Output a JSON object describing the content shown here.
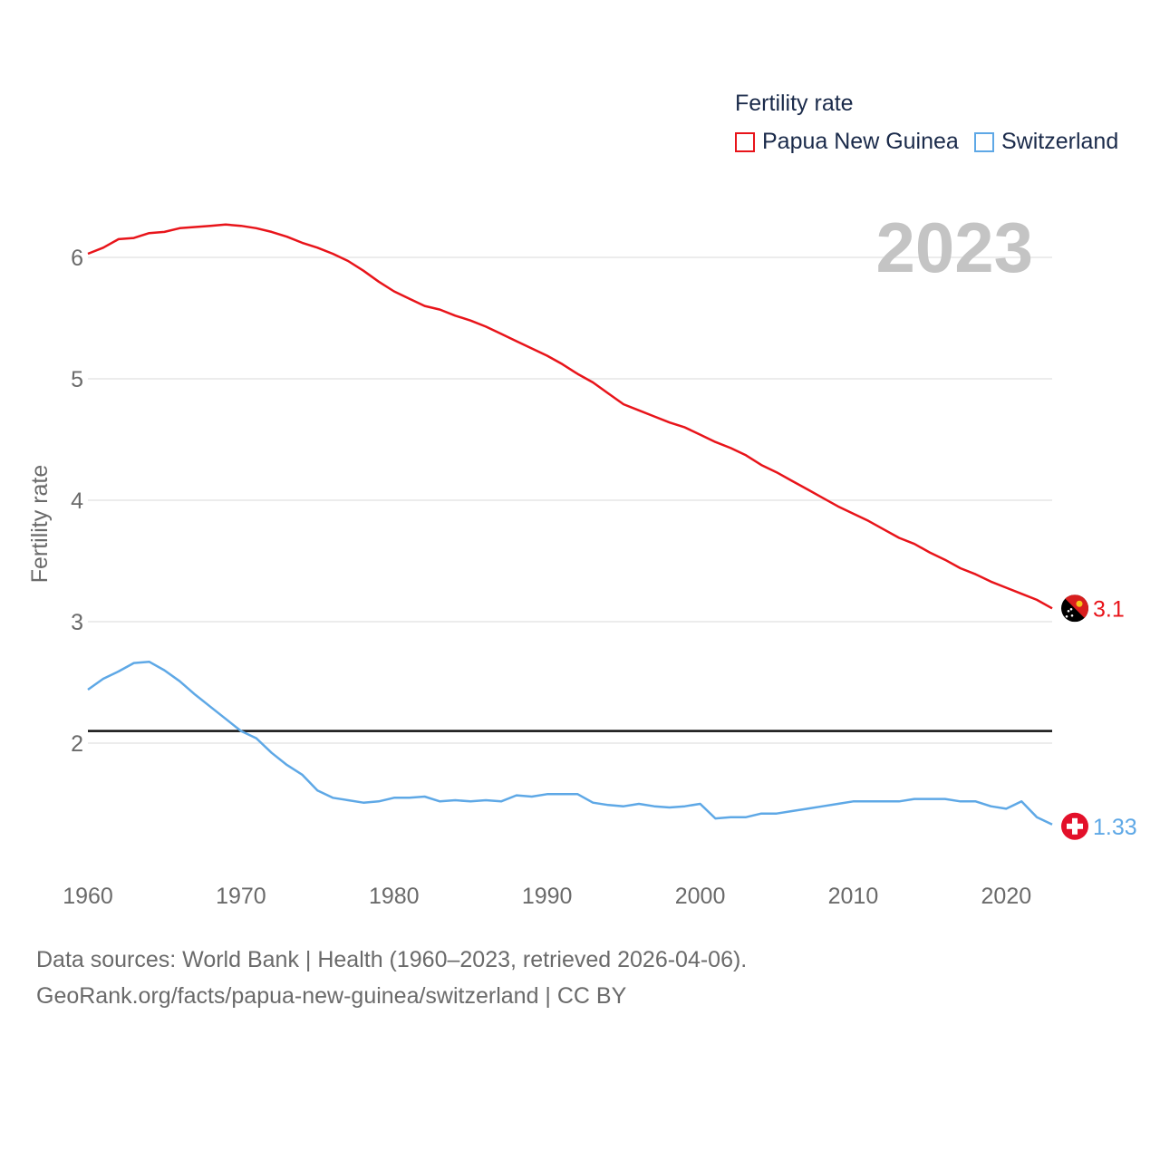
{
  "legend": {
    "title": "Fertility rate",
    "items": [
      {
        "label": "Papua New Guinea",
        "color": "#e8141a"
      },
      {
        "label": "Switzerland",
        "color": "#5ea8e6"
      }
    ]
  },
  "year_label": "2023",
  "footer": {
    "source": "Data sources: World Bank | Health (1960–2023, retrieved 2026-04-06).",
    "credit": "GeoRank.org/facts/papua-new-guinea/switzerland | CC BY"
  },
  "chart_data": {
    "type": "line",
    "title": "",
    "xlabel": "",
    "ylabel": "Fertility rate",
    "xlim": [
      1960,
      2023
    ],
    "ylim": [
      1,
      6.5
    ],
    "x_ticks": [
      "1960",
      "1970",
      "1980",
      "1990",
      "2000",
      "2010",
      "2020"
    ],
    "y_ticks": [
      "2",
      "3",
      "4",
      "5",
      "6"
    ],
    "reference_line": 2.1,
    "x": [
      1960,
      1961,
      1962,
      1963,
      1964,
      1965,
      1966,
      1967,
      1968,
      1969,
      1970,
      1971,
      1972,
      1973,
      1974,
      1975,
      1976,
      1977,
      1978,
      1979,
      1980,
      1981,
      1982,
      1983,
      1984,
      1985,
      1986,
      1987,
      1988,
      1989,
      1990,
      1991,
      1992,
      1993,
      1994,
      1995,
      1996,
      1997,
      1998,
      1999,
      2000,
      2001,
      2002,
      2003,
      2004,
      2005,
      2006,
      2007,
      2008,
      2009,
      2010,
      2011,
      2012,
      2013,
      2014,
      2015,
      2016,
      2017,
      2018,
      2019,
      2020,
      2021,
      2022,
      2023
    ],
    "series": [
      {
        "name": "Papua New Guinea",
        "color": "#e8141a",
        "end_label": "3.1",
        "flag": "papua-new-guinea-flag",
        "values": [
          6.03,
          6.08,
          6.15,
          6.16,
          6.2,
          6.21,
          6.24,
          6.25,
          6.26,
          6.27,
          6.26,
          6.24,
          6.21,
          6.17,
          6.12,
          6.08,
          6.03,
          5.97,
          5.89,
          5.8,
          5.72,
          5.66,
          5.6,
          5.57,
          5.52,
          5.48,
          5.43,
          5.37,
          5.31,
          5.25,
          5.19,
          5.12,
          5.04,
          4.97,
          4.88,
          4.79,
          4.74,
          4.69,
          4.64,
          4.6,
          4.54,
          4.48,
          4.43,
          4.37,
          4.29,
          4.23,
          4.16,
          4.09,
          4.02,
          3.95,
          3.89,
          3.83,
          3.76,
          3.69,
          3.64,
          3.57,
          3.51,
          3.44,
          3.39,
          3.33,
          3.28,
          3.23,
          3.18,
          3.11
        ]
      },
      {
        "name": "Switzerland",
        "color": "#5ea8e6",
        "end_label": "1.33",
        "flag": "switzerland-flag",
        "values": [
          2.44,
          2.53,
          2.59,
          2.66,
          2.67,
          2.6,
          2.51,
          2.4,
          2.3,
          2.2,
          2.1,
          2.04,
          1.92,
          1.82,
          1.74,
          1.61,
          1.55,
          1.53,
          1.51,
          1.52,
          1.55,
          1.55,
          1.56,
          1.52,
          1.53,
          1.52,
          1.53,
          1.52,
          1.57,
          1.56,
          1.58,
          1.58,
          1.58,
          1.51,
          1.49,
          1.48,
          1.5,
          1.48,
          1.47,
          1.48,
          1.5,
          1.38,
          1.39,
          1.39,
          1.42,
          1.42,
          1.44,
          1.46,
          1.48,
          1.5,
          1.52,
          1.52,
          1.52,
          1.52,
          1.54,
          1.54,
          1.54,
          1.52,
          1.52,
          1.48,
          1.46,
          1.52,
          1.39,
          1.33
        ]
      }
    ]
  }
}
